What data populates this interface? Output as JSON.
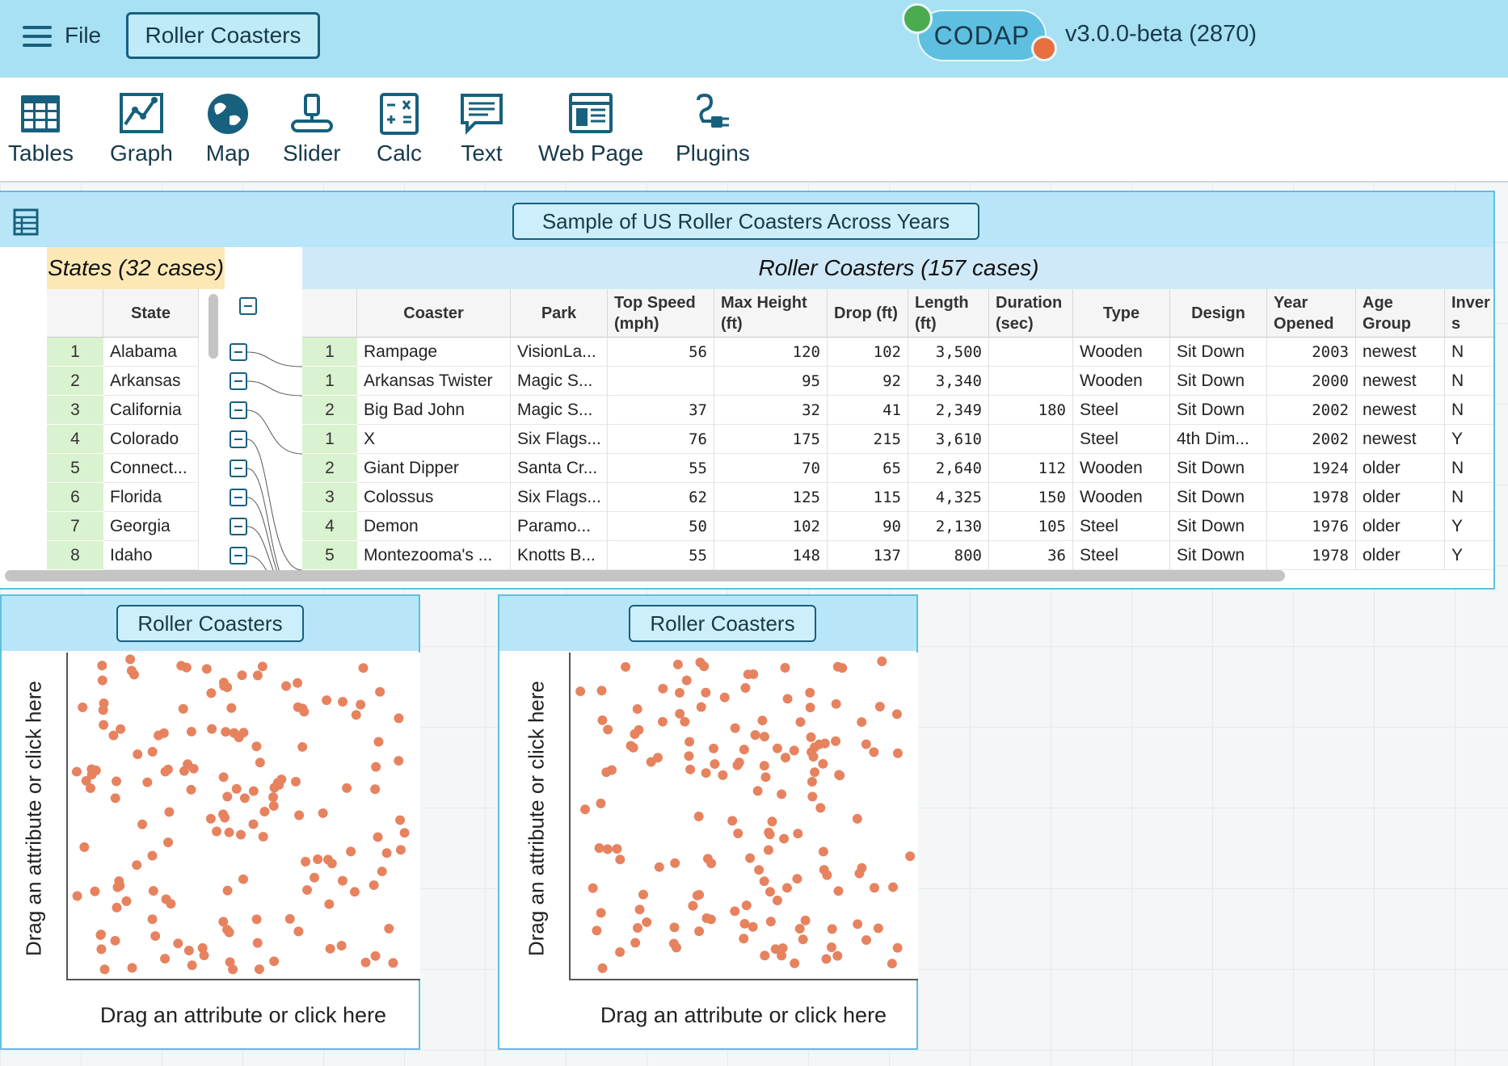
{
  "menubar": {
    "file_label": "File",
    "document_title": "Roller Coasters",
    "app_name": "CODAP",
    "version": "v3.0.0-beta (2870)"
  },
  "toolshelf": [
    {
      "label": "Tables",
      "icon": "table-icon"
    },
    {
      "label": "Graph",
      "icon": "graph-icon"
    },
    {
      "label": "Map",
      "icon": "globe-icon"
    },
    {
      "label": "Slider",
      "icon": "slider-icon"
    },
    {
      "label": "Calc",
      "icon": "calculator-icon"
    },
    {
      "label": "Text",
      "icon": "text-icon"
    },
    {
      "label": "Web Page",
      "icon": "web-page-icon"
    },
    {
      "label": "Plugins",
      "icon": "plugin-icon"
    }
  ],
  "case_table": {
    "title": "Sample of US Roller Coasters Across Years",
    "parent_collection": {
      "name": "States (32 cases)",
      "attribute": "State",
      "rows": [
        {
          "index": "1",
          "state": "Alabama"
        },
        {
          "index": "2",
          "state": "Arkansas"
        },
        {
          "index": "3",
          "state": "California"
        },
        {
          "index": "4",
          "state": "Colorado"
        },
        {
          "index": "5",
          "state": "Connect..."
        },
        {
          "index": "6",
          "state": "Florida"
        },
        {
          "index": "7",
          "state": "Georgia"
        },
        {
          "index": "8",
          "state": "Idaho"
        }
      ]
    },
    "child_collection": {
      "name": "Roller Coasters (157 cases)",
      "columns": [
        "Coaster",
        "Park",
        "Top Speed (mph)",
        "Max Height (ft)",
        "Drop (ft)",
        "Length (ft)",
        "Duration (sec)",
        "Type",
        "Design",
        "Year Opened",
        "Age Group",
        "Inver s"
      ],
      "rows": [
        {
          "index": "1",
          "cells": [
            "Rampage",
            "VisionLa...",
            "56",
            "120",
            "102",
            "3,500",
            "",
            "Wooden",
            "Sit Down",
            "2003",
            "newest",
            "N"
          ]
        },
        {
          "index": "1",
          "cells": [
            "Arkansas Twister",
            "Magic S...",
            "",
            "95",
            "92",
            "3,340",
            "",
            "Wooden",
            "Sit Down",
            "2000",
            "newest",
            "N"
          ]
        },
        {
          "index": "2",
          "cells": [
            "Big Bad John",
            "Magic S...",
            "37",
            "32",
            "41",
            "2,349",
            "180",
            "Steel",
            "Sit Down",
            "2002",
            "newest",
            "N"
          ]
        },
        {
          "index": "1",
          "cells": [
            "X",
            "Six Flags...",
            "76",
            "175",
            "215",
            "3,610",
            "",
            "Steel",
            "4th Dim...",
            "2002",
            "newest",
            "Y"
          ]
        },
        {
          "index": "2",
          "cells": [
            "Giant Dipper",
            "Santa Cr...",
            "55",
            "70",
            "65",
            "2,640",
            "112",
            "Wooden",
            "Sit Down",
            "1924",
            "older",
            "N"
          ]
        },
        {
          "index": "3",
          "cells": [
            "Colossus",
            "Six Flags...",
            "62",
            "125",
            "115",
            "4,325",
            "150",
            "Wooden",
            "Sit Down",
            "1978",
            "older",
            "N"
          ]
        },
        {
          "index": "4",
          "cells": [
            "Demon",
            "Paramo...",
            "50",
            "102",
            "90",
            "2,130",
            "105",
            "Steel",
            "Sit Down",
            "1976",
            "older",
            "Y"
          ]
        },
        {
          "index": "5",
          "cells": [
            "Montezooma's ...",
            "Knotts B...",
            "55",
            "148",
            "137",
            "800",
            "36",
            "Steel",
            "Sit Down",
            "1978",
            "older",
            "Y"
          ]
        }
      ]
    }
  },
  "graphs": [
    {
      "title": "Roller Coasters",
      "y_drop_label": "Drag an attribute or click here",
      "x_drop_label": "Drag an attribute or click here",
      "point_color": "#e7825f",
      "seed": 7
    },
    {
      "title": "Roller Coasters",
      "y_drop_label": "Drag an attribute or click here",
      "x_drop_label": "Drag an attribute or click here",
      "point_color": "#e7825f",
      "seed": 23
    }
  ],
  "colors": {
    "menubar_bg": "#a8e0f4",
    "titlebar_bg": "#b8e6f8",
    "accent_dark": "#17607e",
    "index_bg": "#d9f2cf",
    "parent_header_bg": "#fbe8b4",
    "child_header_bg": "#cfe9f8",
    "point": "#e7825f"
  }
}
